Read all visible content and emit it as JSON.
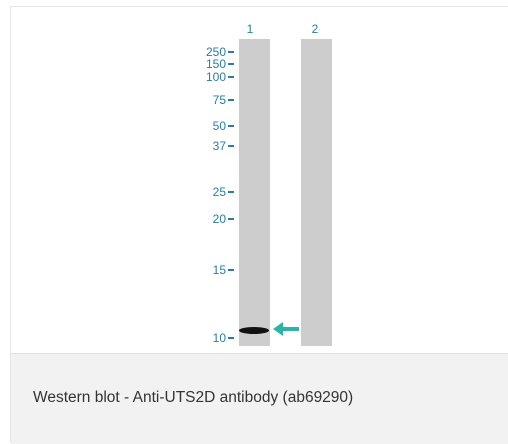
{
  "figure": {
    "lanes": [
      {
        "label": "1"
      },
      {
        "label": "2"
      }
    ],
    "markers": [
      "250",
      "150",
      "100",
      "75",
      "50",
      "37",
      "25",
      "20",
      "15",
      "10"
    ],
    "band_color": "#111111",
    "arrow_color": "#2bb5a5",
    "marker_color": "#2a7ea0",
    "lane_color": "#cdcdcd"
  },
  "caption": {
    "text": "Western blot - Anti-UTS2D antibody (ab69290)"
  }
}
